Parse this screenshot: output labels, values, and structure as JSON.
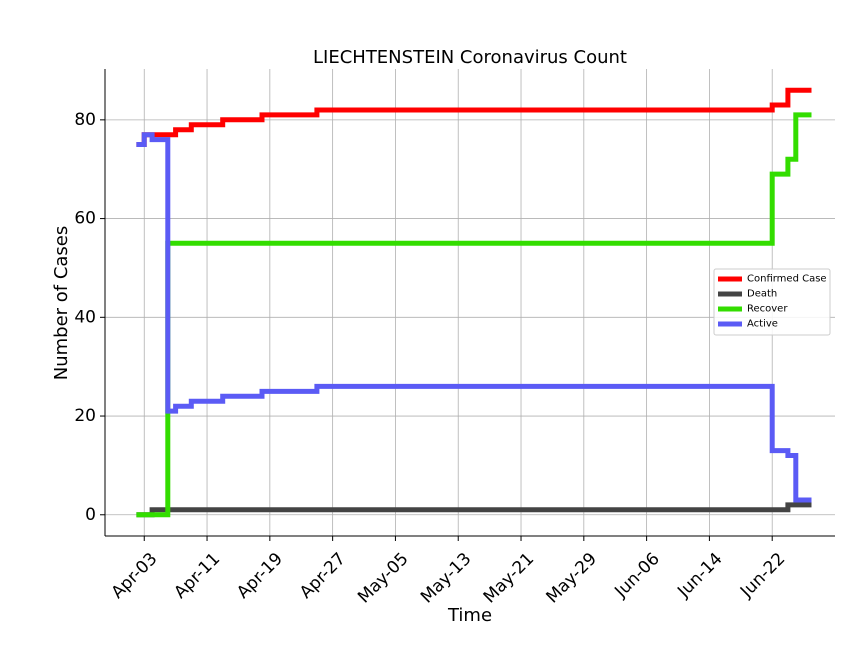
{
  "chart_data": {
    "type": "line",
    "title": "LIECHTENSTEIN Coronavirus Count",
    "xlabel": "Time",
    "ylabel": "Number of Cases",
    "x_ticks": [
      "Apr-03",
      "Apr-11",
      "Apr-19",
      "Apr-27",
      "May-05",
      "May-13",
      "May-21",
      "May-29",
      "Jun-06",
      "Jun-14",
      "Jun-22"
    ],
    "y_ticks": [
      0,
      20,
      40,
      60,
      80
    ],
    "ylim": [
      -4.3,
      90.3
    ],
    "xlim": [
      "2020-03-29",
      "2020-06-30"
    ],
    "grid": true,
    "legend_position": "center-right",
    "step": "post",
    "series": [
      {
        "name": "Confirmed Case",
        "color": "#ff0000",
        "points": [
          [
            "2020-04-02",
            75
          ],
          [
            "2020-04-03",
            77
          ],
          [
            "2020-04-07",
            78
          ],
          [
            "2020-04-09",
            79
          ],
          [
            "2020-04-13",
            80
          ],
          [
            "2020-04-18",
            81
          ],
          [
            "2020-04-25",
            82
          ],
          [
            "2020-06-22",
            83
          ],
          [
            "2020-06-24",
            86
          ],
          [
            "2020-06-27",
            86
          ]
        ]
      },
      {
        "name": "Death",
        "color": "#444444",
        "points": [
          [
            "2020-04-02",
            0
          ],
          [
            "2020-04-03",
            0
          ],
          [
            "2020-04-04",
            1
          ],
          [
            "2020-06-24",
            2
          ],
          [
            "2020-06-27",
            2
          ]
        ]
      },
      {
        "name": "Recover",
        "color": "#33dd00",
        "points": [
          [
            "2020-04-02",
            0
          ],
          [
            "2020-04-05",
            0
          ],
          [
            "2020-04-06",
            55
          ],
          [
            "2020-06-22",
            69
          ],
          [
            "2020-06-24",
            72
          ],
          [
            "2020-06-25",
            81
          ],
          [
            "2020-06-27",
            81
          ]
        ]
      },
      {
        "name": "Active",
        "color": "#5b5bf5",
        "points": [
          [
            "2020-04-02",
            75
          ],
          [
            "2020-04-03",
            77
          ],
          [
            "2020-04-04",
            76
          ],
          [
            "2020-04-05",
            76
          ],
          [
            "2020-04-06",
            21
          ],
          [
            "2020-04-07",
            22
          ],
          [
            "2020-04-09",
            23
          ],
          [
            "2020-04-13",
            24
          ],
          [
            "2020-04-18",
            25
          ],
          [
            "2020-04-25",
            26
          ],
          [
            "2020-06-22",
            13
          ],
          [
            "2020-06-24",
            12
          ],
          [
            "2020-06-25",
            3
          ],
          [
            "2020-06-27",
            3
          ]
        ]
      }
    ]
  }
}
